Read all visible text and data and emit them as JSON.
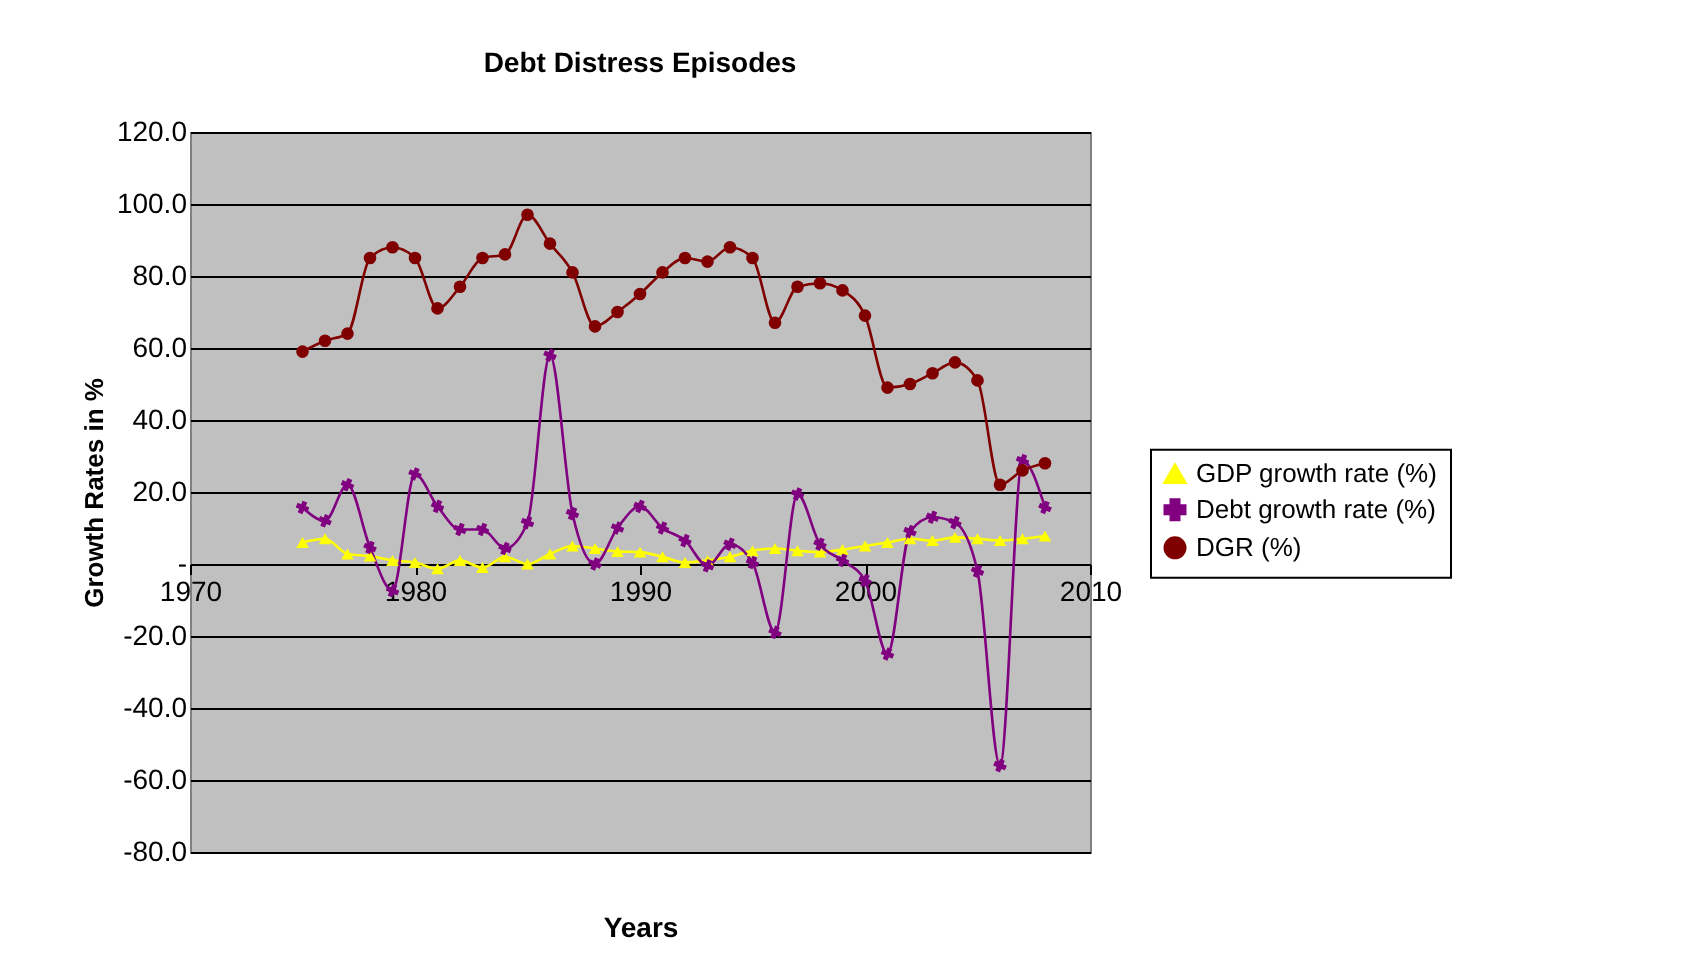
{
  "chart_data": {
    "type": "line",
    "title": "Debt Distress Episodes",
    "xlabel": "Years",
    "ylabel": "Growth Rates in %",
    "x": [
      1975,
      1976,
      1977,
      1978,
      1979,
      1980,
      1981,
      1982,
      1983,
      1984,
      1985,
      1986,
      1987,
      1988,
      1989,
      1990,
      1991,
      1992,
      1993,
      1994,
      1995,
      1996,
      1997,
      1998,
      1999,
      2000,
      2001,
      2002,
      2003,
      2004,
      2005,
      2006,
      2007,
      2008
    ],
    "series": [
      {
        "name": "GDP growth rate (%)",
        "color": "#ffff00",
        "marker": "triangle",
        "values": [
          6,
          7,
          2.8,
          2.2,
          1,
          0.4,
          -1.3,
          1,
          -1,
          2,
          0,
          2.8,
          5,
          4.3,
          3.5,
          3.3,
          2,
          0.4,
          1,
          2,
          3.7,
          4.3,
          3.7,
          3.3,
          4,
          5,
          6,
          7,
          6.5,
          7.4,
          7,
          6.5,
          7,
          7.8
        ]
      },
      {
        "name": "Debt growth rate (%)",
        "color": "#800080",
        "marker": "cross",
        "values": [
          15.7,
          12,
          22,
          4.6,
          -7.4,
          25,
          16,
          9.6,
          9.6,
          4.3,
          11.5,
          58,
          14,
          0,
          10,
          16,
          10,
          6.5,
          -0.5,
          5.5,
          0.4,
          -19,
          19.4,
          5.5,
          1,
          -4.6,
          -25,
          9,
          13,
          11.5,
          -2,
          -56,
          28.7,
          15.7
        ]
      },
      {
        "name": "DGR (%)",
        "color": "#800000",
        "marker": "circle",
        "values": [
          59,
          62,
          64,
          85,
          88,
          85,
          71,
          77,
          85,
          86,
          97,
          89,
          81,
          66,
          70,
          75,
          81,
          85,
          84,
          88,
          85,
          67,
          77,
          78,
          76,
          69,
          49,
          50,
          53,
          56,
          51,
          22,
          26,
          28
        ]
      }
    ],
    "xlim": [
      1970,
      2010
    ],
    "xticks": [
      1970,
      1980,
      1990,
      2000,
      2010
    ],
    "ylim": [
      -80,
      120
    ],
    "yticks": [
      {
        "value": -80,
        "label": "-80.0"
      },
      {
        "value": -60,
        "label": "-60.0"
      },
      {
        "value": -40,
        "label": "-40.0"
      },
      {
        "value": -20,
        "label": "-20.0"
      },
      {
        "value": 0,
        "label": "-"
      },
      {
        "value": 20,
        "label": "20.0"
      },
      {
        "value": 40,
        "label": "40.0"
      },
      {
        "value": 60,
        "label": "60.0"
      },
      {
        "value": 80,
        "label": "80.0"
      },
      {
        "value": 100,
        "label": "100.0"
      },
      {
        "value": 120,
        "label": "120.0"
      }
    ],
    "grid": "y",
    "legend": "right",
    "line_style": "solid"
  }
}
